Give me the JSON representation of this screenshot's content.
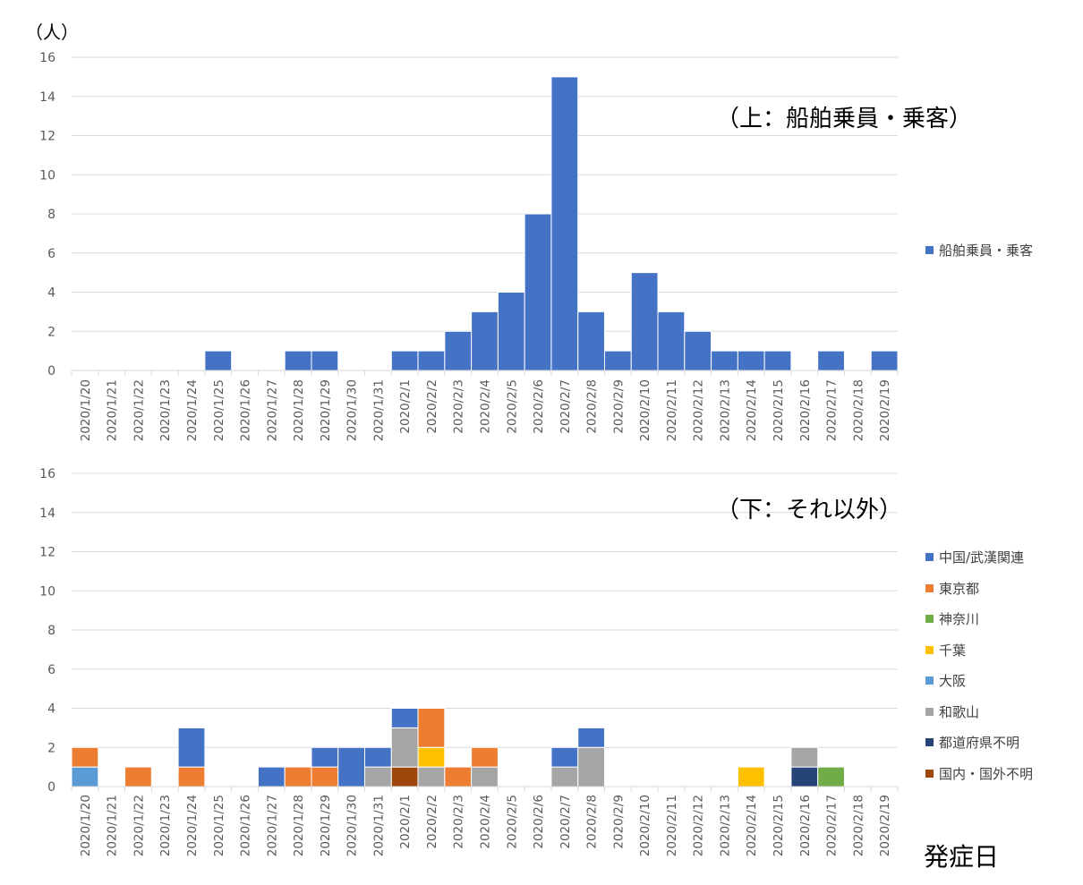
{
  "chart_data": [
    {
      "type": "bar",
      "stacked": true,
      "annotation": "（上：船舶乗員・乗客）",
      "unit_label": "（人）",
      "ylim": [
        0,
        16
      ],
      "yticks": [
        0,
        2,
        4,
        6,
        8,
        10,
        12,
        14,
        16
      ],
      "grid": true,
      "legend_position": "right",
      "categories": [
        "2020/1/20",
        "2020/1/21",
        "2020/1/22",
        "2020/1/23",
        "2020/1/24",
        "2020/1/25",
        "2020/1/26",
        "2020/1/27",
        "2020/1/28",
        "2020/1/29",
        "2020/1/30",
        "2020/1/31",
        "2020/2/1",
        "2020/2/2",
        "2020/2/3",
        "2020/2/4",
        "2020/2/5",
        "2020/2/6",
        "2020/2/7",
        "2020/2/8",
        "2020/2/9",
        "2020/2/10",
        "2020/2/11",
        "2020/2/12",
        "2020/2/13",
        "2020/2/14",
        "2020/2/15",
        "2020/2/16",
        "2020/2/17",
        "2020/2/18",
        "2020/2/19"
      ],
      "series": [
        {
          "name": "船舶乗員・乗客",
          "color": "#4472C4",
          "values": [
            0,
            0,
            0,
            0,
            0,
            1,
            0,
            0,
            1,
            1,
            0,
            0,
            1,
            1,
            2,
            3,
            4,
            8,
            15,
            3,
            1,
            5,
            3,
            2,
            1,
            1,
            1,
            0,
            1,
            0,
            1
          ]
        }
      ]
    },
    {
      "type": "bar",
      "stacked": true,
      "annotation": "（下：それ以外）",
      "xlabel": "発症日",
      "ylim": [
        0,
        16
      ],
      "yticks": [
        0,
        2,
        4,
        6,
        8,
        10,
        12,
        14,
        16
      ],
      "grid": true,
      "legend_position": "right",
      "categories": [
        "2020/1/20",
        "2020/1/21",
        "2020/1/22",
        "2020/1/23",
        "2020/1/24",
        "2020/1/25",
        "2020/1/26",
        "2020/1/27",
        "2020/1/28",
        "2020/1/29",
        "2020/1/30",
        "2020/1/31",
        "2020/2/1",
        "2020/2/2",
        "2020/2/3",
        "2020/2/4",
        "2020/2/5",
        "2020/2/6",
        "2020/2/7",
        "2020/2/8",
        "2020/2/9",
        "2020/2/10",
        "2020/2/11",
        "2020/2/12",
        "2020/2/13",
        "2020/2/14",
        "2020/2/15",
        "2020/2/16",
        "2020/2/17",
        "2020/2/18",
        "2020/2/19"
      ],
      "series": [
        {
          "name": "国内・国外不明",
          "color": "#9E480E",
          "values": [
            0,
            0,
            0,
            0,
            0,
            0,
            0,
            0,
            0,
            0,
            0,
            0,
            1,
            0,
            0,
            0,
            0,
            0,
            0,
            0,
            0,
            0,
            0,
            0,
            0,
            0,
            0,
            0,
            0,
            0,
            0
          ]
        },
        {
          "name": "都道府県不明",
          "color": "#264478",
          "values": [
            0,
            0,
            0,
            0,
            0,
            0,
            0,
            0,
            0,
            0,
            0,
            0,
            0,
            0,
            0,
            0,
            0,
            0,
            0,
            0,
            0,
            0,
            0,
            0,
            0,
            0,
            0,
            1,
            0,
            0,
            0
          ]
        },
        {
          "name": "和歌山",
          "color": "#A5A5A5",
          "values": [
            0,
            0,
            0,
            0,
            0,
            0,
            0,
            0,
            0,
            0,
            0,
            1,
            2,
            1,
            0,
            1,
            0,
            0,
            1,
            2,
            0,
            0,
            0,
            0,
            0,
            0,
            0,
            1,
            0,
            0,
            0
          ]
        },
        {
          "name": "大阪",
          "color": "#5B9BD5",
          "values": [
            1,
            0,
            0,
            0,
            0,
            0,
            0,
            0,
            0,
            0,
            0,
            0,
            0,
            0,
            0,
            0,
            0,
            0,
            0,
            0,
            0,
            0,
            0,
            0,
            0,
            0,
            0,
            0,
            0,
            0,
            0
          ]
        },
        {
          "name": "千葉",
          "color": "#FFC000",
          "values": [
            0,
            0,
            0,
            0,
            0,
            0,
            0,
            0,
            0,
            0,
            0,
            0,
            0,
            1,
            0,
            0,
            0,
            0,
            0,
            0,
            0,
            0,
            0,
            0,
            0,
            1,
            0,
            0,
            0,
            0,
            0
          ]
        },
        {
          "name": "神奈川",
          "color": "#70AD47",
          "values": [
            0,
            0,
            0,
            0,
            0,
            0,
            0,
            0,
            0,
            0,
            0,
            0,
            0,
            0,
            0,
            0,
            0,
            0,
            0,
            0,
            0,
            0,
            0,
            0,
            0,
            0,
            0,
            0,
            1,
            0,
            0
          ]
        },
        {
          "name": "東京都",
          "color": "#ED7D31",
          "values": [
            1,
            0,
            1,
            0,
            1,
            0,
            0,
            0,
            1,
            1,
            0,
            0,
            0,
            2,
            1,
            1,
            0,
            0,
            0,
            0,
            0,
            0,
            0,
            0,
            0,
            0,
            0,
            0,
            0,
            0,
            0
          ]
        },
        {
          "name": "中国/武漢関連",
          "color": "#4472C4",
          "values": [
            0,
            0,
            0,
            0,
            2,
            0,
            0,
            1,
            0,
            1,
            2,
            1,
            1,
            0,
            0,
            0,
            0,
            0,
            1,
            1,
            0,
            0,
            0,
            0,
            0,
            0,
            0,
            0,
            0,
            0,
            0
          ]
        }
      ]
    }
  ]
}
